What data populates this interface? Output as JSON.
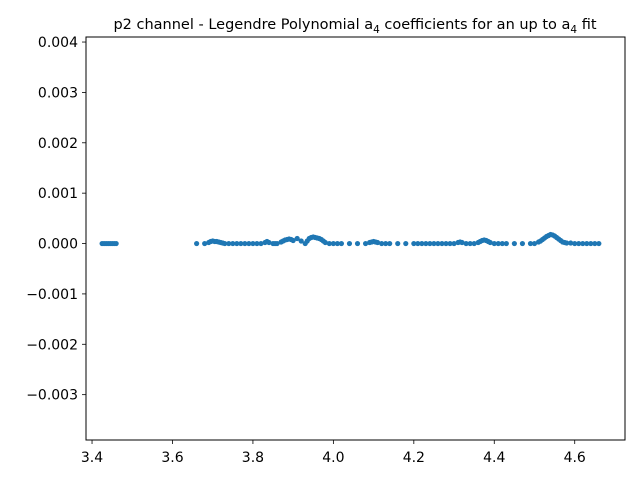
{
  "chart_data": {
    "type": "scatter",
    "title_main": "p2 channel - Legendre Polynomial a",
    "title_sub1": "4",
    "title_mid": " coefficients for an up to a",
    "title_sub2": "4",
    "title_end": " fit",
    "xlabel": "",
    "ylabel": "",
    "xlim": [
      3.385,
      4.725
    ],
    "ylim": [
      -0.0039,
      0.0041
    ],
    "x_ticks": [
      3.4,
      3.6,
      3.8,
      4.0,
      4.2,
      4.4,
      4.6
    ],
    "x_tick_labels": [
      "3.4",
      "3.6",
      "3.8",
      "4.0",
      "4.2",
      "4.4",
      "4.6"
    ],
    "y_ticks": [
      0.004,
      0.003,
      0.002,
      0.001,
      0.0,
      -0.001,
      -0.002,
      -0.003
    ],
    "y_tick_labels": [
      "0.004",
      "0.003",
      "0.002",
      "0.001",
      "0.000",
      "−0.001",
      "−0.002",
      "−0.003"
    ],
    "grid": false,
    "marker_color": "#1f77b4",
    "series": [
      {
        "x": [
          3.425,
          3.43,
          3.435,
          3.44,
          3.445,
          3.45,
          3.455,
          3.46,
          3.66,
          3.68,
          3.69,
          3.695,
          3.7,
          3.705,
          3.71,
          3.715,
          3.72,
          3.725,
          3.73,
          3.74,
          3.75,
          3.76,
          3.77,
          3.78,
          3.79,
          3.8,
          3.81,
          3.82,
          3.83,
          3.835,
          3.84,
          3.85,
          3.855,
          3.86,
          3.87,
          3.875,
          3.88,
          3.885,
          3.89,
          3.895,
          3.9,
          3.91,
          3.92,
          3.93,
          3.935,
          3.94,
          3.945,
          3.95,
          3.955,
          3.96,
          3.965,
          3.97,
          3.975,
          3.98,
          3.99,
          4.0,
          4.01,
          4.02,
          4.04,
          4.06,
          4.08,
          4.09,
          4.095,
          4.1,
          4.105,
          4.11,
          4.12,
          4.13,
          4.14,
          4.16,
          4.18,
          4.2,
          4.21,
          4.22,
          4.23,
          4.24,
          4.25,
          4.26,
          4.27,
          4.28,
          4.29,
          4.3,
          4.31,
          4.315,
          4.32,
          4.33,
          4.34,
          4.35,
          4.36,
          4.365,
          4.37,
          4.375,
          4.38,
          4.385,
          4.39,
          4.4,
          4.41,
          4.42,
          4.43,
          4.45,
          4.47,
          4.49,
          4.5,
          4.51,
          4.515,
          4.52,
          4.525,
          4.53,
          4.535,
          4.54,
          4.545,
          4.55,
          4.555,
          4.56,
          4.565,
          4.57,
          4.575,
          4.58,
          4.59,
          4.6,
          4.61,
          4.62,
          4.63,
          4.64,
          4.65,
          4.66
        ],
        "y": [
          0.0,
          0.0,
          0.0,
          0.0,
          0.0,
          0.0,
          0.0,
          0.0,
          0.0,
          0.0,
          2e-05,
          4e-05,
          5e-05,
          4e-05,
          4e-05,
          3e-05,
          2e-05,
          1e-05,
          0.0,
          0.0,
          0.0,
          0.0,
          0.0,
          0.0,
          0.0,
          0.0,
          0.0,
          0.0,
          2e-05,
          4e-05,
          2e-05,
          0.0,
          0.0,
          0.0,
          3e-05,
          5e-05,
          7e-05,
          8e-05,
          9e-05,
          8e-05,
          6e-05,
          0.0001,
          5e-05,
          0.0,
          5e-05,
          0.0001,
          0.00012,
          0.00013,
          0.00012,
          0.00011,
          0.0001,
          8e-05,
          5e-05,
          2e-05,
          0.0,
          0.0,
          0.0,
          0.0,
          0.0,
          0.0,
          0.0,
          2e-05,
          3e-05,
          4e-05,
          3e-05,
          2e-05,
          0.0,
          0.0,
          0.0,
          0.0,
          0.0,
          0.0,
          0.0,
          0.0,
          0.0,
          0.0,
          0.0,
          0.0,
          0.0,
          0.0,
          0.0,
          0.0,
          2e-05,
          3e-05,
          2e-05,
          0.0,
          0.0,
          0.0,
          2e-05,
          4e-05,
          6e-05,
          7e-05,
          6e-05,
          4e-05,
          2e-05,
          0.0,
          0.0,
          0.0,
          0.0,
          0.0,
          0.0,
          0.0,
          0.0,
          3e-05,
          5e-05,
          8e-05,
          0.00011,
          0.00014,
          0.00016,
          0.00018,
          0.00017,
          0.00015,
          0.00012,
          9e-05,
          6e-05,
          3e-05,
          2e-05,
          1e-05,
          1e-05,
          0.0,
          0.0,
          0.0,
          0.0,
          0.0,
          0.0,
          0.0
        ]
      }
    ]
  }
}
